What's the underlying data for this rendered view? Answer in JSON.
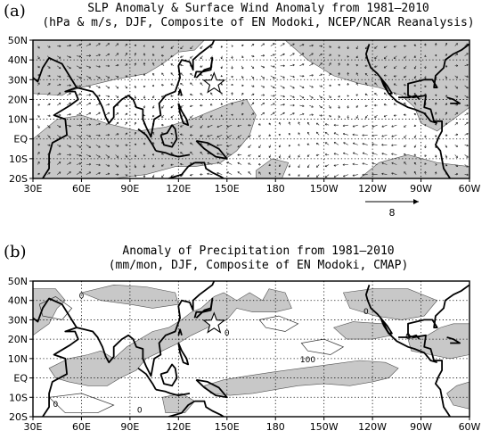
{
  "chart_data": [
    {
      "panel": "(a)",
      "type": "vector-map",
      "title_line1": "SLP Anomaly & Surface Wind Anomaly from 1981–2010",
      "title_line2": "(hPa & m/s, DJF, Composite of EN Modoki, NCEP/NCAR Reanalysis)",
      "x_ticks": [
        "30E",
        "60E",
        "90E",
        "120E",
        "150E",
        "180",
        "150W",
        "120W",
        "90W",
        "60W"
      ],
      "x_tick_lon": [
        30,
        60,
        90,
        120,
        150,
        180,
        210,
        240,
        270,
        300
      ],
      "y_ticks": [
        "50N",
        "40N",
        "30N",
        "20N",
        "10N",
        "EQ",
        "10S",
        "20S"
      ],
      "y_tick_lat": [
        50,
        40,
        30,
        20,
        10,
        0,
        -10,
        -20
      ],
      "xlim": [
        30,
        300
      ],
      "ylim": [
        -20,
        50
      ],
      "grid": true,
      "reference_vector": "8",
      "star": {
        "lon": 142,
        "lat": 28
      },
      "shading": "negative SLP anomaly (gray)"
    },
    {
      "panel": "(b)",
      "type": "contour-map",
      "title_line1": "Anomaly of Precipitation from 1981–2010",
      "title_line2": "(mm/mon, DJF, Composite of EN Modoki, CMAP)",
      "x_ticks": [
        "30E",
        "60E",
        "90E",
        "120E",
        "150E",
        "180",
        "150W",
        "120W",
        "90W",
        "60W"
      ],
      "x_tick_lon": [
        30,
        60,
        90,
        120,
        150,
        180,
        210,
        240,
        270,
        300
      ],
      "y_ticks": [
        "50N",
        "40N",
        "30N",
        "20N",
        "10N",
        "EQ",
        "10S",
        "20S"
      ],
      "y_tick_lat": [
        50,
        40,
        30,
        20,
        10,
        0,
        -10,
        -20
      ],
      "xlim": [
        30,
        300
      ],
      "ylim": [
        -20,
        50
      ],
      "grid": true,
      "star": {
        "lon": 142,
        "lat": 28
      },
      "contour_labels": [
        "100",
        "0",
        "0",
        "0",
        "0",
        "0",
        "0"
      ],
      "shading": "positive precipitation anomaly (gray)"
    }
  ],
  "colors": {
    "shade": "#c8c8c8",
    "coast": "#000000",
    "grid": "#000000"
  }
}
